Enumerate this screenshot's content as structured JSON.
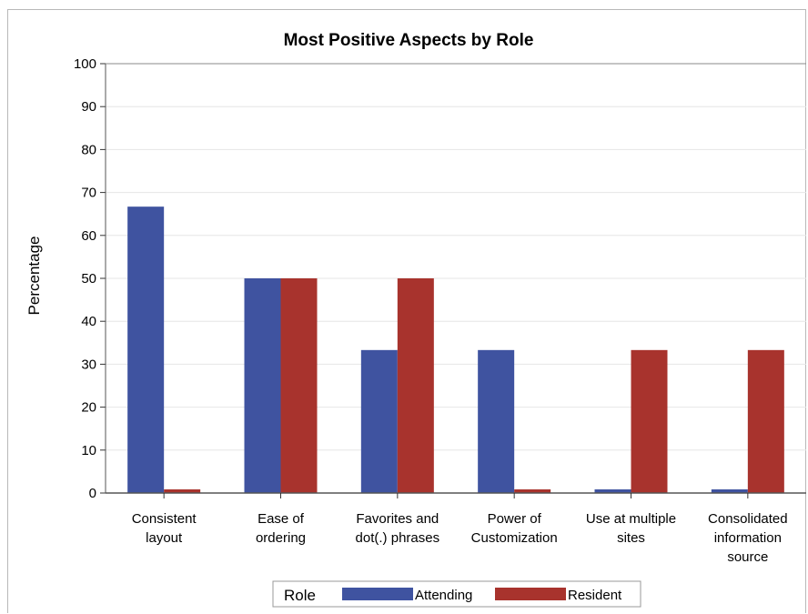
{
  "chart_data": {
    "type": "bar",
    "title": "Most Positive Aspects by Role",
    "xlabel": "",
    "ylabel": "Percentage",
    "ylim": [
      0,
      100
    ],
    "yticks": [
      0,
      10,
      20,
      30,
      40,
      50,
      60,
      70,
      80,
      90,
      100
    ],
    "grid": true,
    "legend_position": "bottom",
    "legend_title": "Role",
    "categories": [
      [
        "Consistent",
        "layout"
      ],
      [
        "Ease of",
        "ordering"
      ],
      [
        "Favorites and",
        "dot(.) phrases"
      ],
      [
        "Power of",
        "Customization"
      ],
      [
        "Use at multiple",
        "sites"
      ],
      [
        "Consolidated",
        "information",
        "source"
      ]
    ],
    "series": [
      {
        "name": "Attending",
        "color": "#3f53a0",
        "values": [
          66.7,
          50,
          33.3,
          33.3,
          0,
          0
        ]
      },
      {
        "name": "Resident",
        "color": "#a8332d",
        "values": [
          0,
          50,
          50,
          0,
          33.3,
          33.3
        ]
      }
    ]
  }
}
